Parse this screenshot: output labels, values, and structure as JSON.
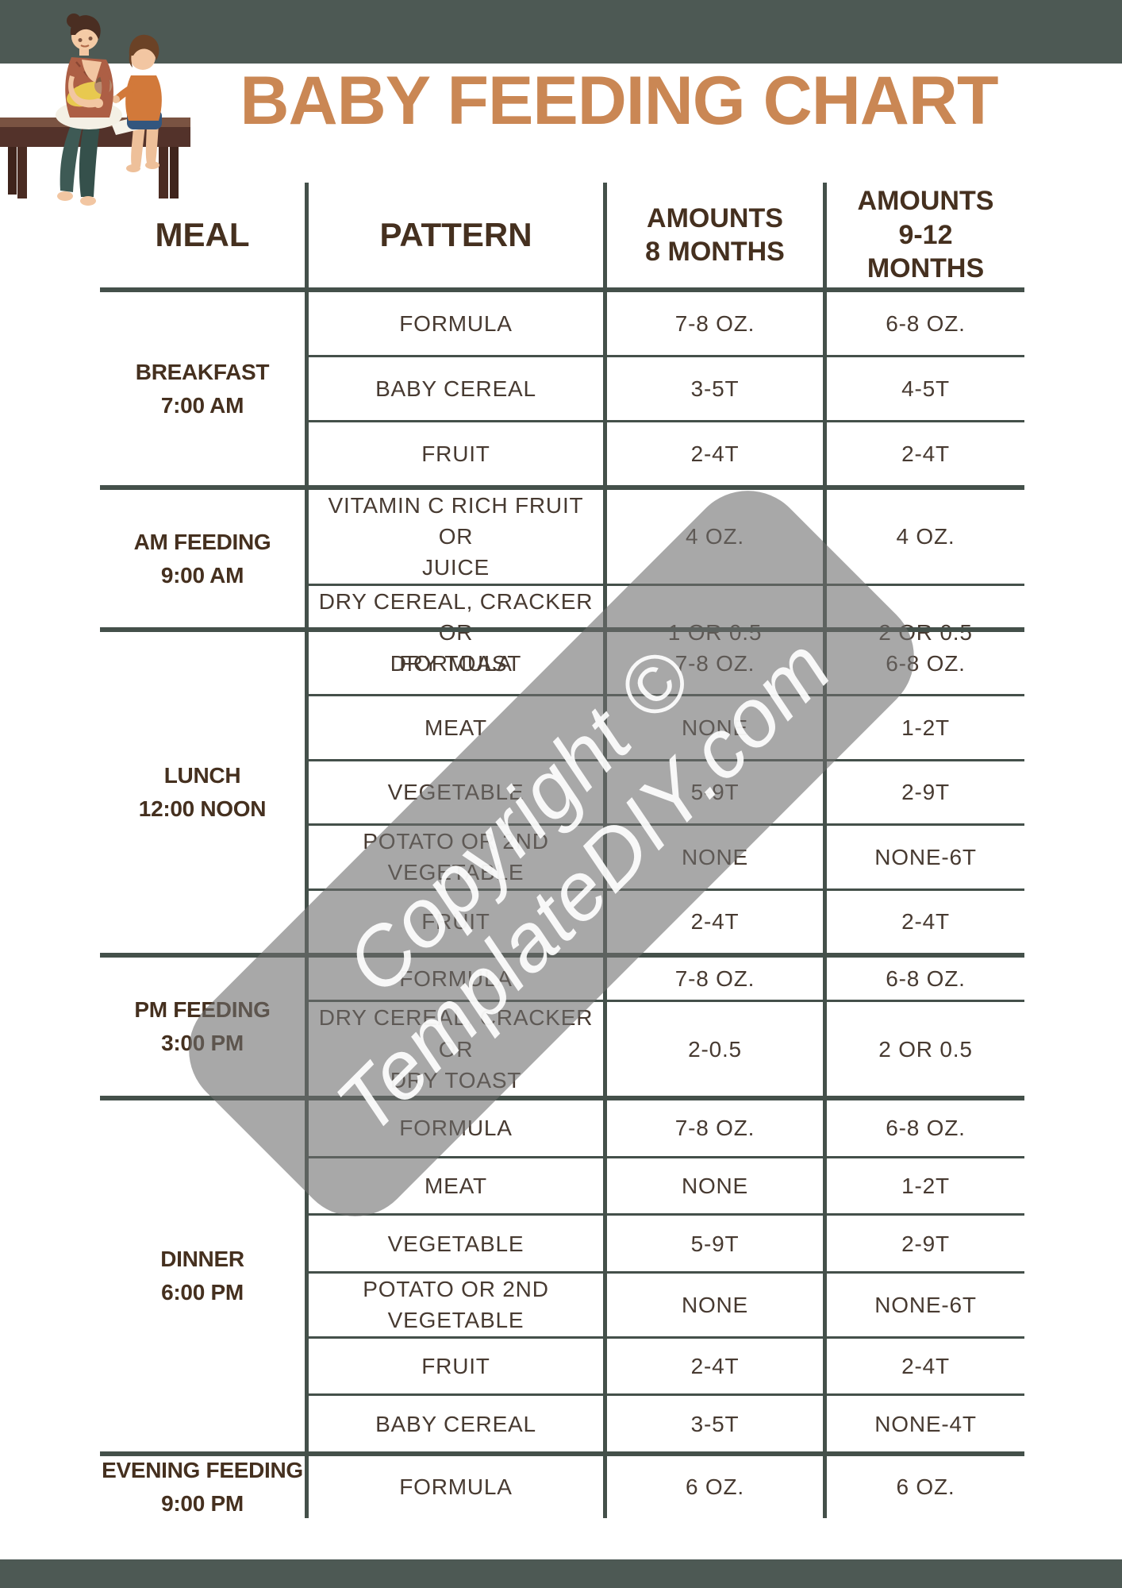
{
  "title": "BABY FEEDING CHART",
  "watermark": {
    "line1": "Copyright ©",
    "line2": "TemplateDIY.com"
  },
  "header": {
    "meal": "MEAL",
    "pattern": "PATTERN",
    "amounts_8": "AMOUNTS\n8 MONTHS",
    "amounts_9_12": "AMOUNTS\n9-12\nMONTHS"
  },
  "groups": [
    {
      "meal": "BREAKFAST",
      "time": "7:00 AM",
      "rows": [
        [
          "FORMULA",
          "7-8 OZ.",
          "6-8 OZ."
        ],
        [
          "BABY CEREAL",
          "3-5T",
          "4-5T"
        ],
        [
          "FRUIT",
          "2-4T",
          "2-4T"
        ]
      ]
    },
    {
      "meal": "AM FEEDING",
      "time": "9:00 AM",
      "rows": [
        [
          "VITAMIN C RICH FRUIT OR\nJUICE",
          "4 OZ.",
          "4 OZ."
        ],
        [
          "DRY CEREAL, CRACKER OR\nDRY TOAST",
          "1 OR 0.5",
          "2 OR 0.5"
        ]
      ]
    },
    {
      "meal": "LUNCH",
      "time": "12:00 NOON",
      "rows": [
        [
          "FORMULA",
          "7-8 OZ.",
          "6-8 OZ."
        ],
        [
          "MEAT",
          "NONE",
          "1-2T"
        ],
        [
          "VEGETABLE",
          "5-9T",
          "2-9T"
        ],
        [
          "POTATO OR 2ND\nVEGETABLE",
          "NONE",
          "NONE-6T"
        ],
        [
          "FRUIT",
          "2-4T",
          "2-4T"
        ]
      ]
    },
    {
      "meal": "PM FEEDING",
      "time": "3:00 PM",
      "rows": [
        [
          "FORMULA",
          "7-8 OZ.",
          "6-8 OZ."
        ],
        [
          "DRY CEREAL, CRACKER OR\nDRY TOAST",
          "2-0.5",
          "2 OR 0.5"
        ]
      ]
    },
    {
      "meal": "DINNER",
      "time": "6:00 PM",
      "rows": [
        [
          "FORMULA",
          "7-8 OZ.",
          "6-8 OZ."
        ],
        [
          "MEAT",
          "NONE",
          "1-2T"
        ],
        [
          "VEGETABLE",
          "5-9T",
          "2-9T"
        ],
        [
          "POTATO OR 2ND\nVEGETABLE",
          "NONE",
          "NONE-6T"
        ],
        [
          "FRUIT",
          "2-4T",
          "2-4T"
        ],
        [
          "BABY CEREAL",
          "3-5T",
          "NONE-4T"
        ]
      ]
    },
    {
      "meal": "EVENING FEEDING",
      "time": "9:00 PM",
      "rows": [
        [
          "FORMULA",
          "6 OZ.",
          "6 OZ."
        ]
      ]
    }
  ],
  "colors": {
    "banner": "#4d5954",
    "table_line": "#44504a",
    "title_orange": "#ca8754",
    "text_brown": "#45301f",
    "watermark_gray": "#6e6e6e"
  }
}
